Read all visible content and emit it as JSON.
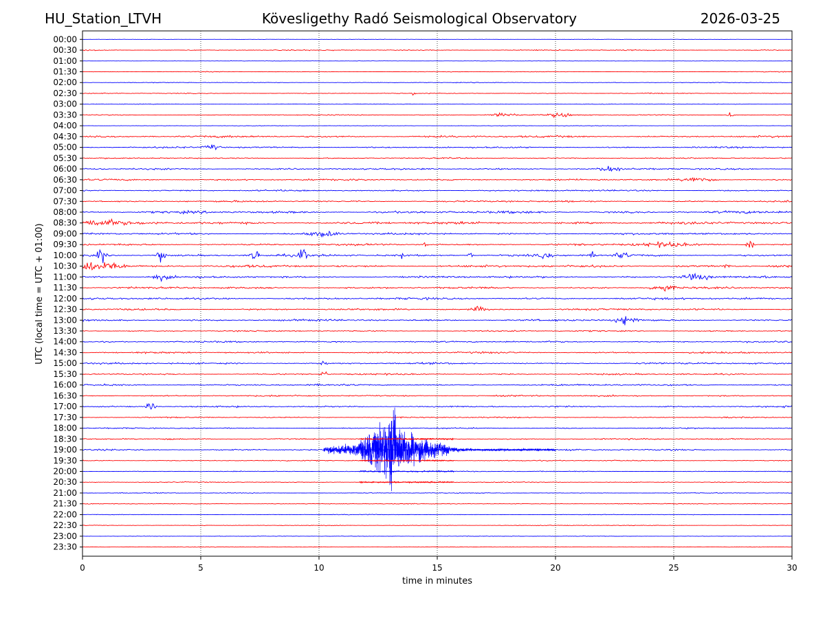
{
  "header": {
    "station": "HU_Station_LTVH",
    "observatory": "Kövesligethy Radó Seismological Observatory",
    "date": "2026-03-25"
  },
  "colors": {
    "even_row": "#0000ff",
    "odd_row": "#ff0000",
    "grid": "#000000"
  },
  "chart_data": {
    "type": "line",
    "title": "Kövesligethy Radó Seismological Observatory",
    "xlabel": "time in minutes",
    "ylabel": "UTC (local time = UTC + 01:00)",
    "xlim": [
      0,
      30
    ],
    "x_ticks": [
      "0",
      "5",
      "10",
      "15",
      "20",
      "25",
      "30"
    ],
    "x_gridlines_minutes": [
      5,
      10,
      15,
      20,
      25
    ],
    "row_labels": [
      "00:00",
      "00:30",
      "01:00",
      "01:30",
      "02:00",
      "02:30",
      "03:00",
      "03:30",
      "04:00",
      "04:30",
      "05:00",
      "05:30",
      "06:00",
      "06:30",
      "07:00",
      "07:30",
      "08:00",
      "08:30",
      "09:00",
      "09:30",
      "10:00",
      "10:30",
      "11:00",
      "11:30",
      "12:00",
      "12:30",
      "13:00",
      "13:30",
      "14:00",
      "14:30",
      "15:00",
      "15:30",
      "16:00",
      "16:30",
      "17:00",
      "17:30",
      "18:00",
      "18:30",
      "19:00",
      "19:30",
      "20:00",
      "20:30",
      "21:00",
      "21:30",
      "22:00",
      "22:30",
      "23:00",
      "23:30"
    ],
    "row_colors_alternate": [
      "blue",
      "red"
    ],
    "base_noise": [
      0.4,
      1.2,
      0.4,
      0.8,
      0.8,
      1.0,
      0.6,
      1.2,
      0.6,
      2.4,
      1.8,
      1.4,
      2.0,
      2.0,
      1.8,
      2.0,
      2.8,
      3.0,
      2.2,
      2.2,
      2.6,
      2.8,
      2.4,
      2.2,
      2.4,
      2.2,
      2.2,
      1.6,
      1.8,
      2.0,
      2.0,
      1.8,
      2.0,
      1.8,
      1.8,
      1.4,
      1.4,
      1.6,
      1.8,
      1.2,
      1.0,
      1.0,
      0.9,
      0.9,
      0.8,
      0.8,
      0.6,
      0.6
    ],
    "events": [
      {
        "row": "10:00",
        "minute": 0.8,
        "amp": 16,
        "width_min": 0.15
      },
      {
        "row": "10:00",
        "minute": 3.3,
        "amp": 16,
        "width_min": 0.15
      },
      {
        "row": "10:00",
        "minute": 7.3,
        "amp": 14,
        "width_min": 0.15
      },
      {
        "row": "10:00",
        "minute": 9.3,
        "amp": 14,
        "width_min": 0.15
      },
      {
        "row": "10:00",
        "minute": 13.5,
        "amp": 8,
        "width_min": 0.08
      },
      {
        "row": "10:00",
        "minute": 16.4,
        "amp": 9,
        "width_min": 0.08
      },
      {
        "row": "10:00",
        "minute": 19.6,
        "amp": 6,
        "width_min": 0.2
      },
      {
        "row": "10:00",
        "minute": 21.6,
        "amp": 8,
        "width_min": 0.08
      },
      {
        "row": "10:00",
        "minute": 22.8,
        "amp": 5,
        "width_min": 0.3
      },
      {
        "row": "09:30",
        "minute": 28.2,
        "amp": 14,
        "width_min": 0.15
      },
      {
        "row": "09:30",
        "minute": 14.5,
        "amp": 8,
        "width_min": 0.1
      },
      {
        "row": "09:30",
        "minute": 24.5,
        "amp": 4,
        "width_min": 1.0
      },
      {
        "row": "10:30",
        "minute": 0.3,
        "amp": 9,
        "width_min": 0.5
      },
      {
        "row": "10:30",
        "minute": 1.2,
        "amp": 7,
        "width_min": 0.5
      },
      {
        "row": "10:30",
        "minute": 27.2,
        "amp": 7,
        "width_min": 0.1
      },
      {
        "row": "11:00",
        "minute": 3.3,
        "amp": 5,
        "width_min": 0.4
      },
      {
        "row": "11:00",
        "minute": 26.0,
        "amp": 6,
        "width_min": 0.6
      },
      {
        "row": "11:30",
        "minute": 24.5,
        "amp": 9,
        "width_min": 0.4
      },
      {
        "row": "13:00",
        "minute": 23.0,
        "amp": 8,
        "width_min": 0.4
      },
      {
        "row": "15:30",
        "minute": 10.2,
        "amp": 12,
        "width_min": 0.1
      },
      {
        "row": "15:00",
        "minute": 10.2,
        "amp": 6,
        "width_min": 0.1
      },
      {
        "row": "17:00",
        "minute": 2.9,
        "amp": 7,
        "width_min": 0.2
      },
      {
        "row": "06:30",
        "minute": 26.0,
        "amp": 6,
        "width_min": 0.5
      },
      {
        "row": "06:00",
        "minute": 22.3,
        "amp": 5,
        "width_min": 0.4
      },
      {
        "row": "08:30",
        "minute": 0.6,
        "amp": 6,
        "width_min": 1.0
      },
      {
        "row": "09:00",
        "minute": 10.2,
        "amp": 5,
        "width_min": 0.6
      },
      {
        "row": "03:30",
        "minute": 17.8,
        "amp": 5,
        "width_min": 0.5
      },
      {
        "row": "03:30",
        "minute": 20.2,
        "amp": 5,
        "width_min": 0.4
      },
      {
        "row": "03:30",
        "minute": 27.4,
        "amp": 6,
        "width_min": 0.15
      },
      {
        "row": "05:00",
        "minute": 5.5,
        "amp": 5,
        "width_min": 0.3
      },
      {
        "row": "12:30",
        "minute": 16.8,
        "amp": 5,
        "width_min": 0.3
      },
      {
        "row": "02:30",
        "minute": 14.0,
        "amp": 5,
        "width_min": 0.05
      }
    ],
    "earthquake": {
      "row": "19:00",
      "start_minute": 10.2,
      "peak_minute": 13.1,
      "end_minute": 20.0,
      "peak_amplitude": 105,
      "red_overlap_rows": [
        "18:30",
        "19:30",
        "20:00",
        "20:30"
      ]
    }
  }
}
